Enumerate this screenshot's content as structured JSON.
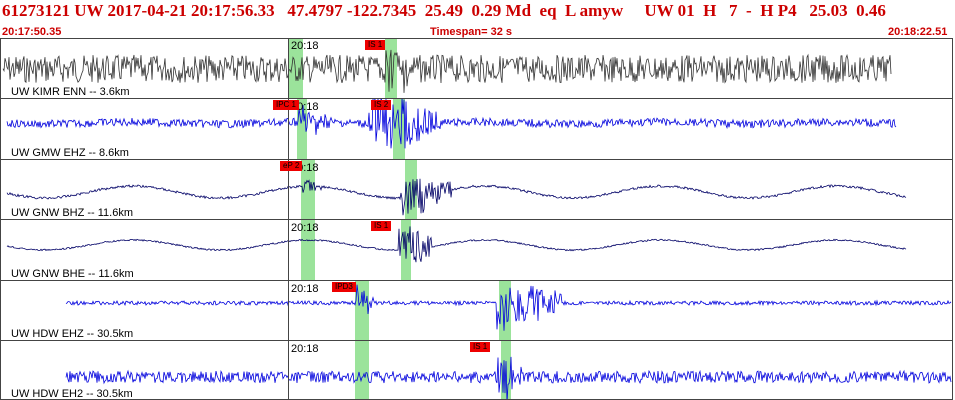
{
  "header": {
    "line": "61273121 UW 2017-04-21 20:17:56.33   47.4797 -122.7345  25.49  0.29 Md  eq  L amyw     UW 01  H   7  -  H P4   25.03  0.46",
    "start_time": "20:17:50.35",
    "timespan": "Timespan=  32 s",
    "end_time": "20:18:22.51"
  },
  "colors": {
    "header": "#cc0000",
    "pick": "#ee0000",
    "band": "#9be39b",
    "trace_blue": "#0000dd",
    "trace_dark": "#333333"
  },
  "panels": [
    {
      "label": "UW KIMR ENN -- 3.6km",
      "minute": "20:18",
      "picks": [
        "IS 1"
      ],
      "color": "#333333"
    },
    {
      "label": "UW GMW EHZ -- 8.6km",
      "minute": "20:18",
      "picks": [
        "IPC 1",
        "IS 2"
      ],
      "color": "#0000dd"
    },
    {
      "label": "UW GNW BHZ -- 11.6km",
      "minute": "20:18",
      "picks": [
        "eP 2"
      ],
      "color": "#000066"
    },
    {
      "label": "UW GNW BHE -- 11.6km",
      "minute": "20:18",
      "picks": [
        "IS 1"
      ],
      "color": "#000066"
    },
    {
      "label": "UW HDW EHZ -- 30.5km",
      "minute": "20:18",
      "picks": [
        "IPD3"
      ],
      "color": "#0000dd"
    },
    {
      "label": "UW HDW EH2 -- 30.5km",
      "minute": "20:18",
      "picks": [
        "IS 1"
      ],
      "color": "#0000dd"
    }
  ]
}
